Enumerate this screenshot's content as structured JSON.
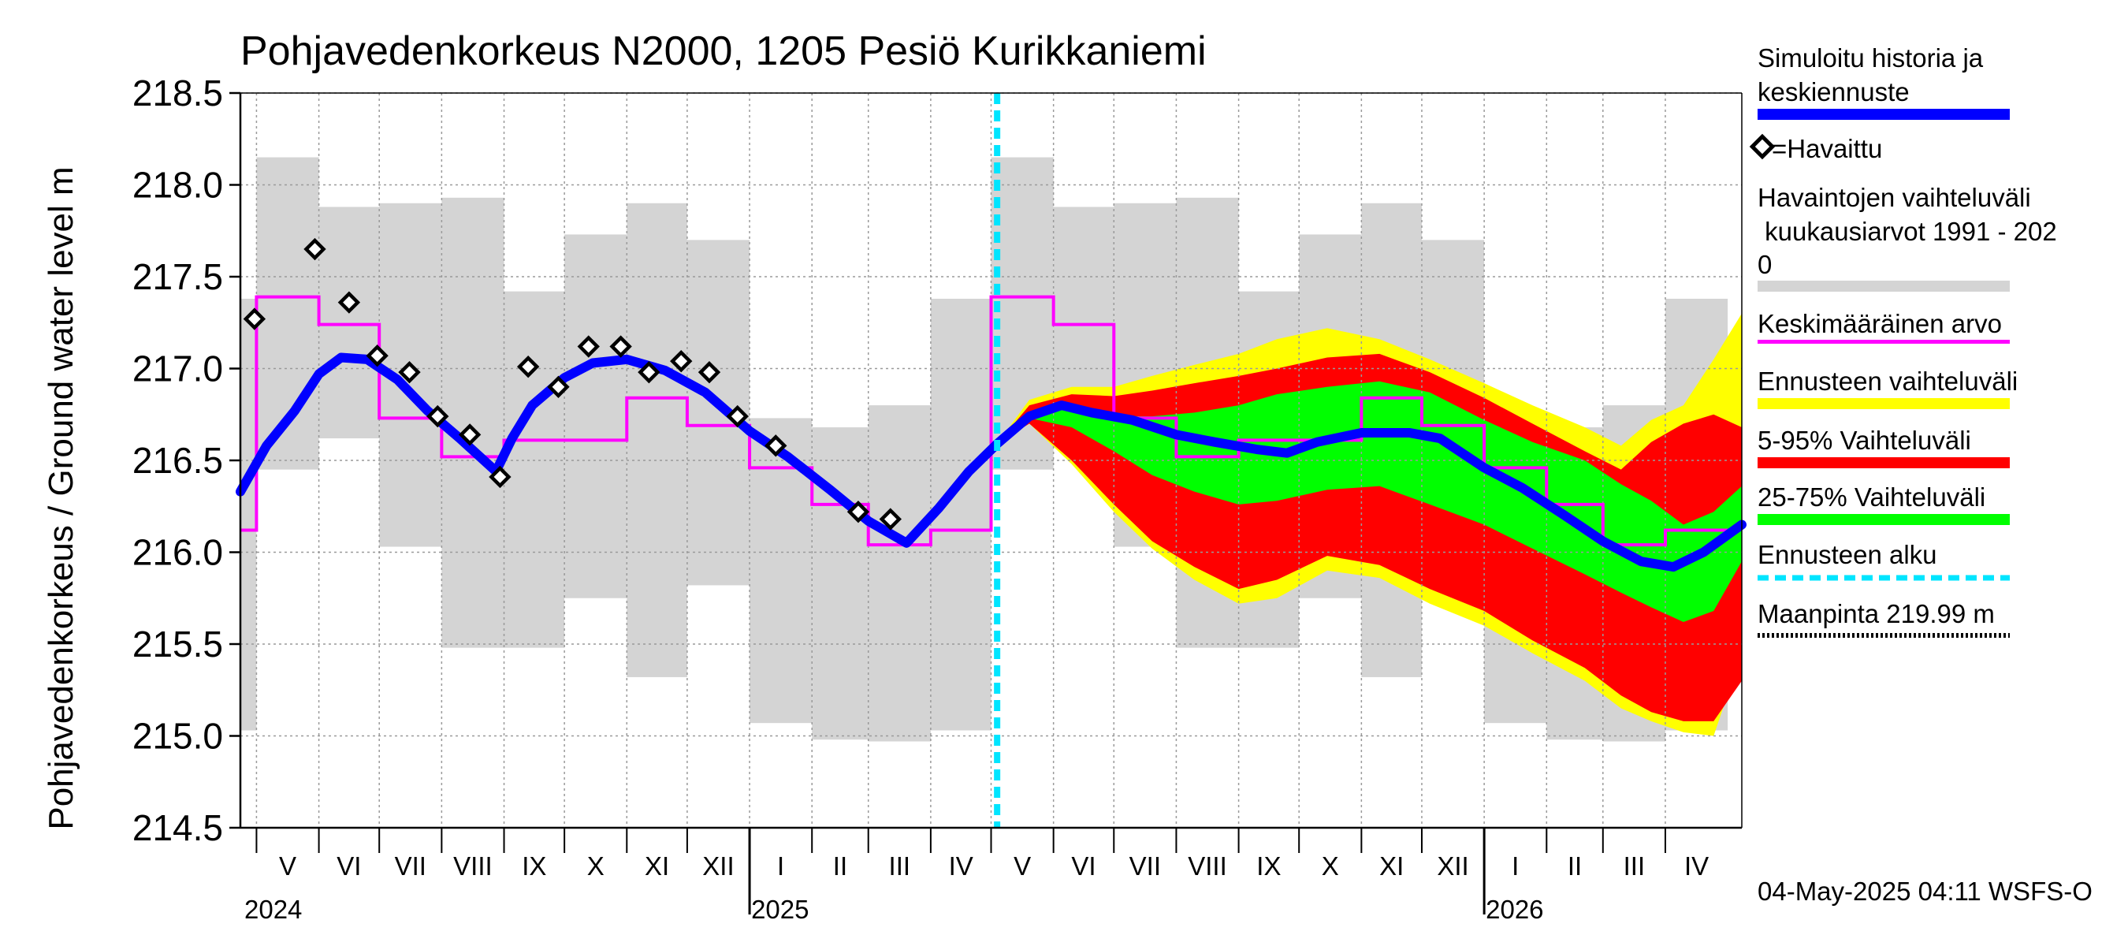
{
  "chart_data": {
    "type": "area",
    "title": "Pohjavedenkorkeus N2000, 1205 Pesiö Kurikkaniemi",
    "ylabel": "Pohjavedenkorkeus / Ground water level   m",
    "ylim": [
      214.5,
      218.5
    ],
    "yticks": [
      214.5,
      215.0,
      215.5,
      216.0,
      216.5,
      217.0,
      217.5,
      218.0,
      218.5
    ],
    "ytick_labels": [
      "214.5",
      "215.0",
      "215.5",
      "216.0",
      "216.5",
      "217.0",
      "217.5",
      "218.0",
      "218.5"
    ],
    "x_start": "2024-04-23",
    "x_end": "2026-05-09",
    "forecast_start": "2025-05-04",
    "months": [
      {
        "label": "V",
        "start": "2024-05-01"
      },
      {
        "label": "VI",
        "start": "2024-06-01"
      },
      {
        "label": "VII",
        "start": "2024-07-01"
      },
      {
        "label": "VIII",
        "start": "2024-08-01"
      },
      {
        "label": "IX",
        "start": "2024-09-01"
      },
      {
        "label": "X",
        "start": "2024-10-01"
      },
      {
        "label": "XI",
        "start": "2024-11-01"
      },
      {
        "label": "XII",
        "start": "2024-12-01"
      },
      {
        "label": "I",
        "start": "2025-01-01"
      },
      {
        "label": "II",
        "start": "2025-02-01"
      },
      {
        "label": "III",
        "start": "2025-03-01"
      },
      {
        "label": "IV",
        "start": "2025-04-01"
      },
      {
        "label": "V",
        "start": "2025-05-01"
      },
      {
        "label": "VI",
        "start": "2025-06-01"
      },
      {
        "label": "VII",
        "start": "2025-07-01"
      },
      {
        "label": "VIII",
        "start": "2025-08-01"
      },
      {
        "label": "IX",
        "start": "2025-09-01"
      },
      {
        "label": "X",
        "start": "2025-10-01"
      },
      {
        "label": "XI",
        "start": "2025-11-01"
      },
      {
        "label": "XII",
        "start": "2025-12-01"
      },
      {
        "label": "I",
        "start": "2026-01-01"
      },
      {
        "label": "II",
        "start": "2026-02-01"
      },
      {
        "label": "III",
        "start": "2026-03-01"
      },
      {
        "label": "IV",
        "start": "2026-04-01"
      }
    ],
    "years": [
      {
        "label": "2024",
        "date": "2024-05-01"
      },
      {
        "label": "2025",
        "date": "2025-01-01"
      },
      {
        "label": "2026",
        "date": "2026-01-01"
      }
    ],
    "monthly_range": {
      "name": "Havaintojen vaihteluväli kuukausiarvot 1991 - 2020",
      "months": [
        "V",
        "VI",
        "VII",
        "VIII",
        "IX",
        "X",
        "XI",
        "XII",
        "I",
        "II",
        "III",
        "IV"
      ],
      "max": [
        218.15,
        217.88,
        217.9,
        217.93,
        217.42,
        217.73,
        217.9,
        217.7,
        216.73,
        216.68,
        216.8,
        217.38
      ],
      "min": [
        216.45,
        216.62,
        216.03,
        215.48,
        215.48,
        215.75,
        215.32,
        215.82,
        215.07,
        214.98,
        214.97,
        215.03
      ]
    },
    "monthly_mean": {
      "name": "Keskimääräinen arvo",
      "values": [
        217.39,
        217.24,
        216.73,
        216.52,
        216.61,
        216.61,
        216.84,
        216.69,
        216.46,
        216.26,
        216.04,
        216.12
      ]
    },
    "observed": {
      "name": "=Havaittu",
      "points": [
        [
          "2024-04-30",
          217.27
        ],
        [
          "2024-05-30",
          217.65
        ],
        [
          "2024-06-16",
          217.36
        ],
        [
          "2024-06-30",
          217.07
        ],
        [
          "2024-07-16",
          216.98
        ],
        [
          "2024-07-30",
          216.74
        ],
        [
          "2024-08-15",
          216.64
        ],
        [
          "2024-08-30",
          216.41
        ],
        [
          "2024-09-13",
          217.01
        ],
        [
          "2024-09-28",
          216.9
        ],
        [
          "2024-10-13",
          217.12
        ],
        [
          "2024-10-29",
          217.12
        ],
        [
          "2024-11-12",
          216.98
        ],
        [
          "2024-11-28",
          217.04
        ],
        [
          "2024-12-12",
          216.98
        ],
        [
          "2024-12-26",
          216.74
        ],
        [
          "2025-01-14",
          216.58
        ],
        [
          "2025-02-24",
          216.22
        ],
        [
          "2025-03-12",
          216.18
        ]
      ]
    },
    "simulated_history": {
      "name": "Simuloitu historia ja keskiennuste",
      "points": [
        [
          "2024-04-23",
          216.33
        ],
        [
          "2024-05-06",
          216.58
        ],
        [
          "2024-05-20",
          216.77
        ],
        [
          "2024-06-01",
          216.97
        ],
        [
          "2024-06-12",
          217.06
        ],
        [
          "2024-06-25",
          217.05
        ],
        [
          "2024-07-10",
          216.94
        ],
        [
          "2024-07-25",
          216.77
        ],
        [
          "2024-08-10",
          216.62
        ],
        [
          "2024-08-28",
          216.44
        ],
        [
          "2024-09-05",
          216.62
        ],
        [
          "2024-09-15",
          216.8
        ],
        [
          "2024-10-01",
          216.95
        ],
        [
          "2024-10-15",
          217.03
        ],
        [
          "2024-11-01",
          217.05
        ],
        [
          "2024-11-20",
          216.99
        ],
        [
          "2024-12-10",
          216.87
        ],
        [
          "2025-01-01",
          216.66
        ],
        [
          "2025-01-20",
          216.52
        ],
        [
          "2025-02-10",
          216.34
        ],
        [
          "2025-03-01",
          216.17
        ],
        [
          "2025-03-20",
          216.05
        ],
        [
          "2025-04-05",
          216.24
        ],
        [
          "2025-04-20",
          216.44
        ],
        [
          "2025-05-04",
          216.59
        ]
      ]
    },
    "forecast_mean": {
      "name": "Simuloitu historia ja keskiennuste",
      "points": [
        [
          "2025-05-04",
          216.59
        ],
        [
          "2025-05-20",
          216.74
        ],
        [
          "2025-06-05",
          216.8
        ],
        [
          "2025-06-20",
          216.76
        ],
        [
          "2025-07-10",
          216.72
        ],
        [
          "2025-08-01",
          216.64
        ],
        [
          "2025-08-20",
          216.6
        ],
        [
          "2025-09-10",
          216.56
        ],
        [
          "2025-09-25",
          216.54
        ],
        [
          "2025-10-10",
          216.6
        ],
        [
          "2025-11-01",
          216.65
        ],
        [
          "2025-11-25",
          216.65
        ],
        [
          "2025-12-10",
          216.62
        ],
        [
          "2026-01-01",
          216.46
        ],
        [
          "2026-01-20",
          216.35
        ],
        [
          "2026-02-10",
          216.2
        ],
        [
          "2026-03-01",
          216.06
        ],
        [
          "2026-03-20",
          215.95
        ],
        [
          "2026-04-05",
          215.92
        ],
        [
          "2026-04-20",
          216.0
        ],
        [
          "2026-05-09",
          216.15
        ]
      ]
    },
    "forecast_bands": {
      "dates": [
        "2025-05-04",
        "2025-05-20",
        "2025-06-10",
        "2025-07-01",
        "2025-07-20",
        "2025-08-10",
        "2025-09-01",
        "2025-09-20",
        "2025-10-15",
        "2025-11-10",
        "2025-12-05",
        "2026-01-01",
        "2026-01-25",
        "2026-02-20",
        "2026-03-10",
        "2026-03-25",
        "2026-04-10",
        "2026-04-25",
        "2026-05-09"
      ],
      "envelope": {
        "name": "Ennusteen vaihteluväli",
        "upper": [
          216.59,
          216.83,
          216.9,
          216.9,
          216.96,
          217.02,
          217.08,
          217.16,
          217.22,
          217.16,
          217.05,
          216.92,
          216.8,
          216.68,
          216.58,
          216.72,
          216.8,
          217.05,
          217.3
        ],
        "lower": [
          216.59,
          216.7,
          216.48,
          216.22,
          216.02,
          215.85,
          215.72,
          215.75,
          215.9,
          215.86,
          215.72,
          215.6,
          215.45,
          215.3,
          215.15,
          215.08,
          215.02,
          215.0,
          215.45
        ]
      },
      "p5_95": {
        "name": "5-95% Vaihteluväli",
        "upper": [
          216.59,
          216.8,
          216.86,
          216.85,
          216.88,
          216.92,
          216.96,
          217.0,
          217.06,
          217.08,
          216.98,
          216.84,
          216.7,
          216.55,
          216.45,
          216.6,
          216.7,
          216.75,
          216.68
        ],
        "lower": [
          216.59,
          216.7,
          216.5,
          216.26,
          216.06,
          215.92,
          215.8,
          215.85,
          215.98,
          215.93,
          215.8,
          215.68,
          215.52,
          215.37,
          215.22,
          215.13,
          215.08,
          215.08,
          215.3
        ]
      },
      "p25_75": {
        "name": "25-75% Vaihteluväli",
        "upper": [
          216.59,
          216.76,
          216.8,
          216.74,
          216.74,
          216.76,
          216.8,
          216.86,
          216.9,
          216.93,
          216.87,
          216.72,
          216.6,
          216.5,
          216.37,
          216.28,
          216.15,
          216.22,
          216.36
        ],
        "lower": [
          216.59,
          216.73,
          216.68,
          216.55,
          216.42,
          216.33,
          216.26,
          216.28,
          216.34,
          216.36,
          216.26,
          216.15,
          216.02,
          215.88,
          215.78,
          215.7,
          215.62,
          215.68,
          215.95
        ]
      }
    },
    "forecast_start_line": {
      "name": "Ennusteen alku"
    },
    "ground_level": {
      "name": "Maanpinta 219.99 m",
      "value": 219.99
    }
  },
  "legend": {
    "sim_line1": "Simuloitu historia ja",
    "sim_line2": "keskiennuste",
    "observed": "=Havaittu",
    "range_line1": "Havaintojen vaihteluväli",
    "range_line2": " kuukausiarvot 1991 - 202",
    "range_line3": "0",
    "mean": "Keskimääräinen arvo",
    "envelope": "Ennusteen vaihteluväli",
    "p5_95": "5-95% Vaihteluväli",
    "p25_75": "25-75% Vaihteluväli",
    "forecast_start": "Ennusteen alku",
    "ground": "Maanpinta 219.99 m"
  },
  "footer": {
    "timestamp": "04-May-2025 04:11 WSFS-O"
  },
  "colors": {
    "monthly_range": "#d4d4d4",
    "mean": "#ff00ff",
    "simulated": "#0000ff",
    "envelope": "#ffff00",
    "p5_95": "#ff0000",
    "p25_75": "#00ff00",
    "forecast_start": "#00e5ff",
    "grid": "#9a9a9a"
  }
}
